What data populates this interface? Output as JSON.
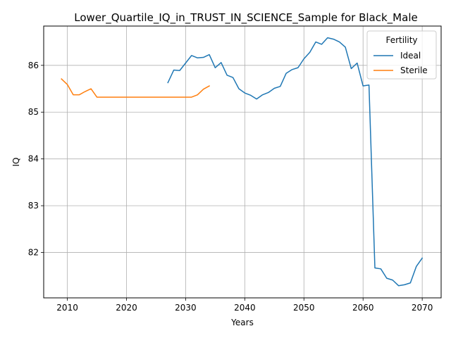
{
  "chart_data": {
    "type": "line",
    "title": "Lower_Quartile_IQ_in_TRUST_IN_SCIENCE_Sample for Black_Male",
    "xlabel": "Years",
    "ylabel": "IQ",
    "xlim": [
      2006,
      2073.2
    ],
    "ylim": [
      81.03,
      86.84
    ],
    "xticks": [
      2010,
      2020,
      2030,
      2040,
      2050,
      2060,
      2070
    ],
    "yticks": [
      82,
      83,
      84,
      85,
      86
    ],
    "grid": true,
    "legend": {
      "title": "Fertility",
      "placement": "top-right"
    },
    "colors": {
      "Ideal": "#1f77b4",
      "Sterile": "#ff7f0e"
    },
    "series": [
      {
        "name": "Ideal",
        "x": [
          2027,
          2028,
          2029,
          2030,
          2031,
          2032,
          2033,
          2034,
          2035,
          2036,
          2037,
          2038,
          2039,
          2040,
          2041,
          2042,
          2043,
          2044,
          2045,
          2046,
          2047,
          2048,
          2049,
          2050,
          2051,
          2052,
          2053,
          2054,
          2055,
          2056,
          2057,
          2058,
          2059,
          2060,
          2061,
          2062,
          2063,
          2064,
          2065,
          2066,
          2067,
          2068,
          2069,
          2070
        ],
        "y": [
          85.63,
          85.9,
          85.89,
          86.05,
          86.21,
          86.16,
          86.17,
          86.23,
          85.95,
          86.06,
          85.79,
          85.74,
          85.5,
          85.41,
          85.36,
          85.28,
          85.37,
          85.42,
          85.51,
          85.55,
          85.83,
          85.91,
          85.95,
          86.14,
          86.28,
          86.5,
          86.45,
          86.59,
          86.56,
          86.5,
          86.39,
          85.93,
          86.05,
          85.56,
          85.58,
          81.67,
          81.65,
          81.45,
          81.41,
          81.29,
          81.31,
          81.35,
          81.7,
          81.88
        ]
      },
      {
        "name": "Sterile",
        "x": [
          2009,
          2010,
          2011,
          2012,
          2013,
          2014,
          2015,
          2016,
          2017,
          2018,
          2019,
          2020,
          2021,
          2022,
          2023,
          2024,
          2025,
          2026,
          2027,
          2028,
          2029,
          2030,
          2031,
          2032,
          2033,
          2034
        ],
        "y": [
          85.71,
          85.59,
          85.37,
          85.37,
          85.44,
          85.5,
          85.32,
          85.32,
          85.32,
          85.32,
          85.32,
          85.32,
          85.32,
          85.32,
          85.32,
          85.32,
          85.32,
          85.32,
          85.32,
          85.32,
          85.32,
          85.32,
          85.32,
          85.37,
          85.49,
          85.56
        ]
      }
    ]
  }
}
